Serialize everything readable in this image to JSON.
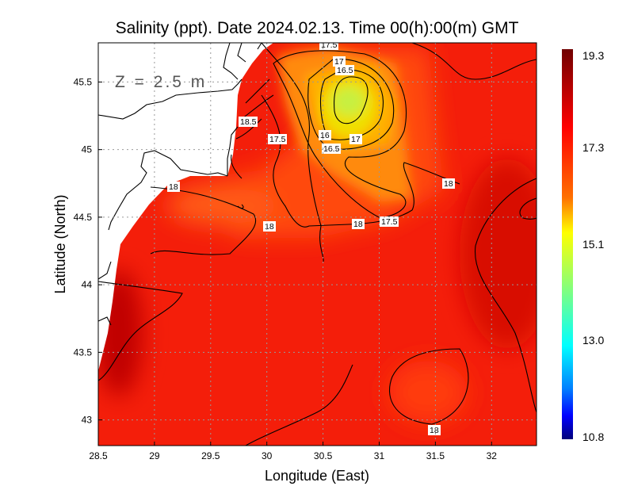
{
  "chart_data": {
    "type": "heatmap",
    "title": "Salinity (ppt). Date 2024.02.13. Time 00(h):00(m) GMT",
    "depth_label": "Z = 2.5 m",
    "xlabel": "Longitude (East)",
    "ylabel": "Latitude (North)",
    "xlim": [
      28.5,
      32.4
    ],
    "ylim": [
      42.81,
      45.79
    ],
    "x_ticks": [
      "28.5",
      "29",
      "29.5",
      "30",
      "30.5",
      "31",
      "31.5",
      "32"
    ],
    "y_ticks": [
      "45.5",
      "45",
      "44.5",
      "44",
      "43.5",
      "43"
    ],
    "grid": true,
    "colorbar": {
      "min": 10.8,
      "max": 19.3,
      "tick_labels": [
        "19.3",
        "17.3",
        "15.1",
        "13.0",
        "10.8"
      ],
      "colormap": [
        "#700000",
        "#ff0000",
        "#ff8000",
        "#ffff00",
        "#80ff80",
        "#00ffff",
        "#0080ff",
        "#0000ff",
        "#00007a"
      ]
    },
    "contour_labels": [
      "17.5",
      "17",
      "16.5",
      "18.5",
      "17.5",
      "16",
      "16.5",
      "17",
      "18",
      "18",
      "18",
      "18",
      "17.5",
      "18"
    ],
    "contour_levels": [
      16,
      16.5,
      17,
      17.5,
      18,
      18.5
    ]
  }
}
